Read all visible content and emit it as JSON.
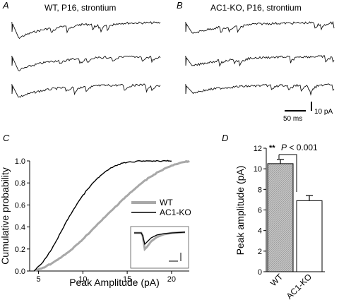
{
  "panels": {
    "A": {
      "letter": "A",
      "title": "WT, P16, strontium"
    },
    "B": {
      "letter": "B",
      "title": "AC1-KO, P16, strontium"
    },
    "C": {
      "letter": "C"
    },
    "D": {
      "letter": "D"
    }
  },
  "scale_bar": {
    "time_label": "50 ms",
    "amp_label": "10 pA"
  },
  "colors": {
    "wt": "#a8a8a8",
    "ko": "#000000",
    "wt_bar_fill": "#c4c4c4"
  },
  "chart_data": [
    {
      "type": "line",
      "panel": "C",
      "xlabel": "Peak Amplitude (pA)",
      "ylabel": "Cumulative probability",
      "xlim": [
        4,
        22
      ],
      "ylim": [
        0,
        1.0
      ],
      "xticks": [
        5,
        10,
        15,
        20
      ],
      "yticks": [
        0.0,
        0.2,
        0.4,
        0.6,
        0.8,
        1.0
      ],
      "legend_position": "right",
      "inset": "averaged event traces with scale bar",
      "series": [
        {
          "name": "WT",
          "x": [
            4.5,
            5.5,
            6.5,
            7.5,
            8.5,
            9.5,
            10.5,
            11.5,
            12.5,
            13.5,
            14.5,
            15.5,
            16.5,
            17.5,
            18.5,
            19.5,
            20.5,
            21.5,
            22.0
          ],
          "y": [
            0.0,
            0.03,
            0.07,
            0.12,
            0.18,
            0.25,
            0.33,
            0.41,
            0.49,
            0.57,
            0.65,
            0.72,
            0.79,
            0.85,
            0.9,
            0.94,
            0.97,
            0.99,
            1.0
          ]
        },
        {
          "name": "AC1-KO",
          "x": [
            4.5,
            5.5,
            6.5,
            7.5,
            8.5,
            9.5,
            10.5,
            11.5,
            12.5,
            13.5,
            14.5,
            15.5,
            16.5,
            17.5,
            18.5,
            19.5,
            20.0
          ],
          "y": [
            0.0,
            0.08,
            0.2,
            0.35,
            0.5,
            0.63,
            0.74,
            0.83,
            0.9,
            0.95,
            0.98,
            0.99,
            1.0,
            1.0,
            1.0,
            1.0,
            1.0
          ]
        }
      ]
    },
    {
      "type": "bar",
      "panel": "D",
      "categories": [
        "WT",
        "AC1-KO"
      ],
      "values": [
        10.5,
        6.9
      ],
      "errors": [
        0.4,
        0.5
      ],
      "ylabel": "Peak amplitude (pA)",
      "ylim": [
        0,
        12
      ],
      "yticks": [
        0,
        2,
        4,
        6,
        8,
        10,
        12
      ],
      "annotation": {
        "stars": "**",
        "p_letter": "P",
        "p_rest": " < 0.001"
      }
    }
  ]
}
